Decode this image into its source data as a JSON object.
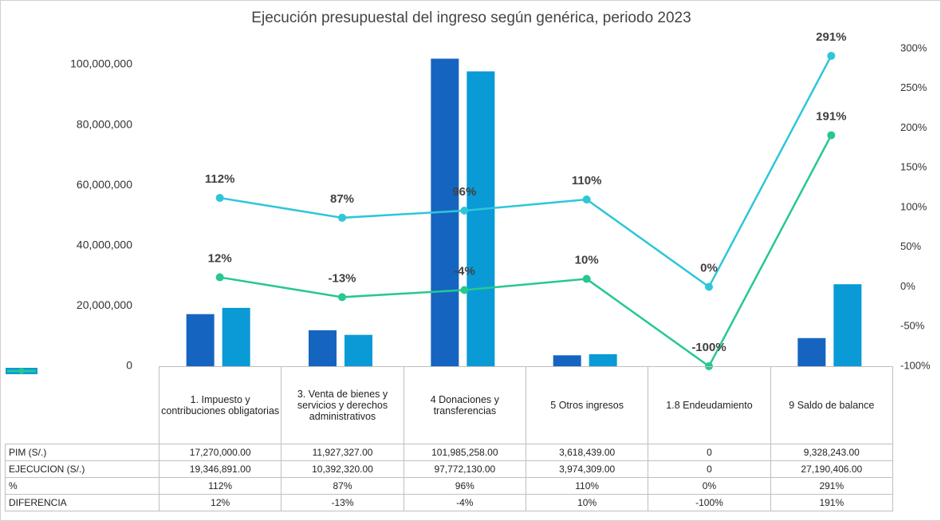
{
  "chart_data": {
    "type": "bar",
    "title": "Ejecución presupuestal del ingreso según genérica, periodo 2023",
    "categories": [
      "1. Impuesto y contribuciones obligatorias",
      "3. Venta de bienes y servicios y derechos administrativos",
      "4 Donaciones y transferencias",
      "5 Otros ingresos",
      "1.8 Endeudamiento",
      "9 Saldo de balance"
    ],
    "series": [
      {
        "name": "PIM (S/.)",
        "type": "bar",
        "color": "#1565c0",
        "values": [
          17270000,
          11927327,
          101985258,
          3618439,
          0,
          9328243
        ],
        "value_labels": [
          "17,270,000.00",
          "11,927,327.00",
          "101,985,258.00",
          "3,618,439.00",
          "0",
          "9,328,243.00"
        ]
      },
      {
        "name": "EJECUCION (S/.)",
        "type": "bar",
        "color": "#0a9ad6",
        "values": [
          19346891,
          10392320,
          97772130,
          3974309,
          0,
          27190406
        ],
        "value_labels": [
          "19,346,891.00",
          "10,392,320.00",
          "97,772,130.00",
          "3,974,309.00",
          "0",
          "27,190,406.00"
        ]
      },
      {
        "name": "%",
        "type": "line",
        "axis": "y2",
        "color": "#2ec6d9",
        "values": [
          112,
          87,
          96,
          110,
          0,
          291
        ],
        "value_labels": [
          "112%",
          "87%",
          "96%",
          "110%",
          "0%",
          "291%"
        ]
      },
      {
        "name": "DIFERENCIA",
        "type": "line",
        "axis": "y2",
        "color": "#26c88f",
        "values": [
          12,
          -13,
          -4,
          10,
          -100,
          191
        ],
        "value_labels": [
          "12%",
          "-13%",
          "-4%",
          "10%",
          "-100%",
          "191%"
        ]
      }
    ],
    "ylim": [
      0,
      105300000
    ],
    "yticks": [
      0,
      {
        "value": 20000000,
        "label": "20,000,000"
      },
      {
        "value": 40000000,
        "label": "40,000,000"
      },
      {
        "value": 60000000,
        "label": "60,000,000"
      },
      {
        "value": 80000000,
        "label": "80,000,000"
      },
      {
        "value": 100000000,
        "label": "100,000,000"
      }
    ],
    "y2lim": [
      -100,
      300
    ],
    "y2ticks": [
      {
        "value": -100,
        "label": "-100%"
      },
      {
        "value": -50,
        "label": "-50%"
      },
      {
        "value": 0,
        "label": "0%"
      },
      {
        "value": 50,
        "label": "50%"
      },
      {
        "value": 100,
        "label": "100%"
      },
      {
        "value": 150,
        "label": "150%"
      },
      {
        "value": 200,
        "label": "200%"
      },
      {
        "value": 250,
        "label": "250%"
      },
      {
        "value": 300,
        "label": "300%"
      }
    ]
  }
}
